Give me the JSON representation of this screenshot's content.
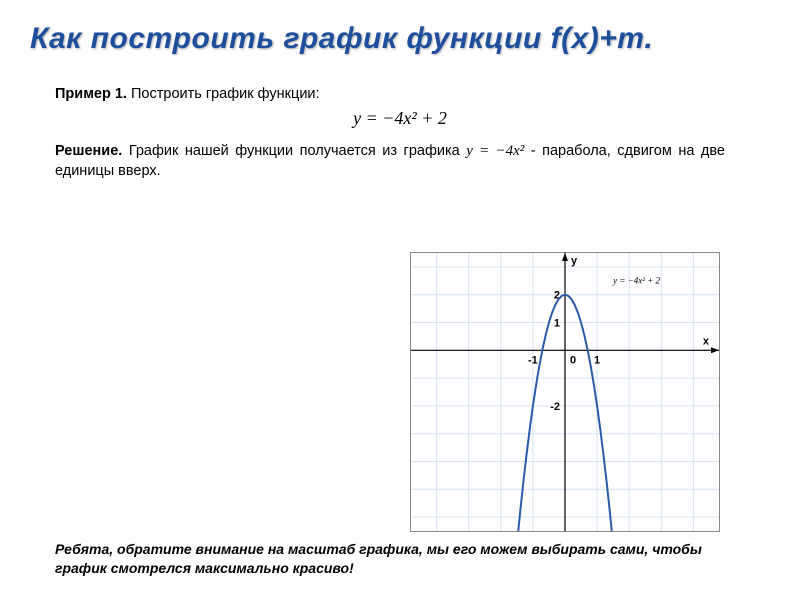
{
  "title": "Как построить график функции f(x)+m.",
  "example": {
    "label": "Пример 1.",
    "text": " Построить график функции:"
  },
  "formula_main": "y = −4x² + 2",
  "solution": {
    "label": "Решение.",
    "text_a": " График нашей функции получается из графика ",
    "inline_formula": "y = −4x²",
    "text_b": " - парабола, сдвигом на две единицы вверх."
  },
  "footer": "Ребята, обратите внимание на масштаб графика, мы его можем выбирать сами, чтобы график смотрелся максимально красиво!",
  "chart": {
    "type": "line",
    "background_color": "#ffffff",
    "grid_color": "#d6e3f3",
    "axis_color": "#000000",
    "curve_color": "#2b5aa8",
    "curve_width": 2,
    "x_axis_label": "x",
    "y_axis_label": "y",
    "equation_label": "y = −4x² + 2",
    "plot": {
      "x_min": -4.8,
      "x_max": 4.8,
      "y_min": -6.5,
      "y_max": 3.5,
      "grid_step": 1,
      "origin_label": "0"
    },
    "x_ticks": [
      {
        "v": -1,
        "label": "-1"
      },
      {
        "v": 1,
        "label": "1"
      }
    ],
    "y_ticks": [
      {
        "v": 2,
        "label": "2"
      },
      {
        "v": 1,
        "label": "1"
      },
      {
        "v": -2,
        "label": "-2"
      }
    ],
    "curve_points_x": [
      -1.5,
      -1.4,
      -1.3,
      -1.2,
      -1.1,
      -1.0,
      -0.9,
      -0.8,
      -0.7,
      -0.6,
      -0.5,
      -0.4,
      -0.3,
      -0.2,
      -0.1,
      0,
      0.1,
      0.2,
      0.3,
      0.4,
      0.5,
      0.6,
      0.7,
      0.8,
      0.9,
      1.0,
      1.1,
      1.2,
      1.3,
      1.4,
      1.5
    ]
  }
}
